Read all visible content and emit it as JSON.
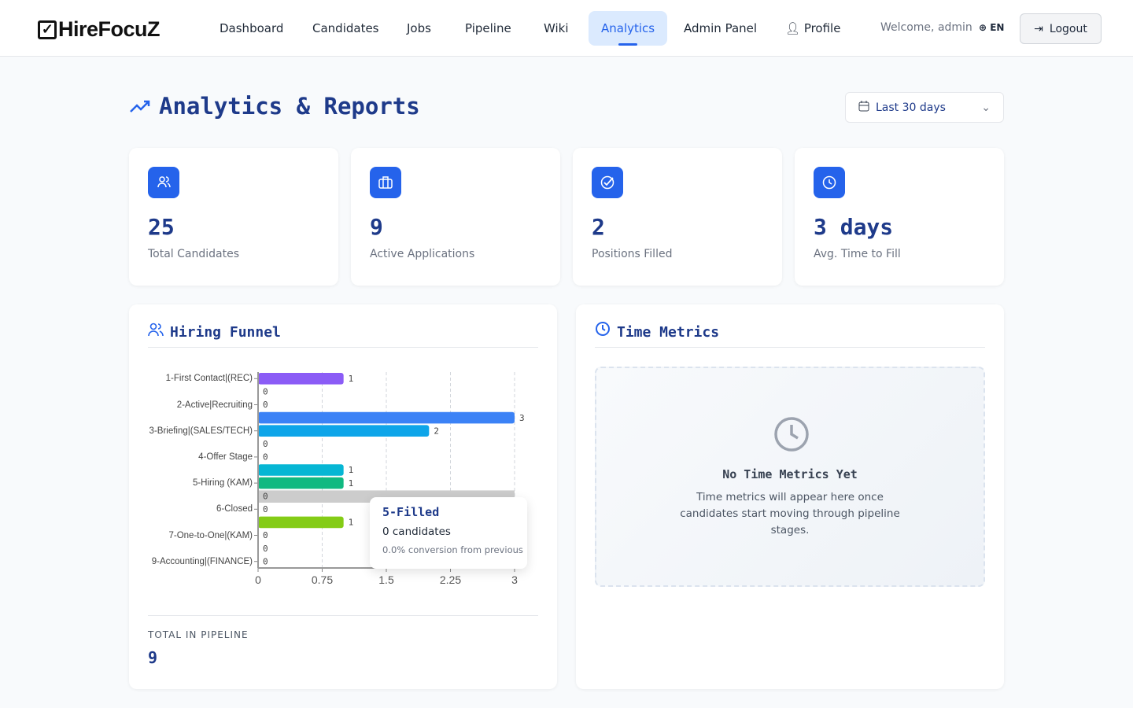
{
  "brand": "HireFocuZ",
  "nav": {
    "items": [
      "Dashboard",
      "Candidates",
      "Jobs",
      "Pipeline",
      "Wiki",
      "Analytics",
      "Admin Panel",
      "Profile"
    ],
    "active": "Analytics",
    "welcome": "Welcome, admin",
    "lang": "EN",
    "logout": "Logout"
  },
  "page": {
    "title": "Analytics & Reports",
    "range": "Last 30 days"
  },
  "stats": [
    {
      "value": "25",
      "label": "Total Candidates",
      "icon": "users-icon"
    },
    {
      "value": "9",
      "label": "Active Applications",
      "icon": "briefcase-icon"
    },
    {
      "value": "2",
      "label": "Positions Filled",
      "icon": "check-circle-icon"
    },
    {
      "value": "3 days",
      "label": "Avg. Time to Fill",
      "icon": "clock-icon"
    }
  ],
  "funnel": {
    "title": "Hiring Funnel",
    "total_label": "TOTAL IN PIPELINE",
    "total": "9",
    "tooltip": {
      "title": "5-Filled",
      "count": "0 candidates",
      "conversion": "0.0% conversion from previous"
    }
  },
  "time": {
    "title": "Time Metrics",
    "empty_title": "No Time Metrics Yet",
    "empty_text": "Time metrics will appear here once candidates start moving through pipeline stages."
  },
  "chart_data": {
    "type": "bar",
    "orientation": "horizontal",
    "categories": [
      "1-First Contact (REC)",
      "",
      "2-Active Recruiting",
      "",
      "3-Briefing (SALES/TECH)",
      "",
      "4-Offer Stage",
      "",
      "5-Hiring (KAM)",
      "5-Filled",
      "6-Closed",
      "",
      "7-One-to-One (KAM)",
      "",
      "9-Accounting (FINANCE)"
    ],
    "tick_labels": [
      "1-First Contact|(REC)",
      "2-Active|Recruiting",
      "3-Briefing|(SALES/TECH)",
      "4-Offer Stage",
      "5-Hiring (KAM)",
      "6-Closed",
      "7-One-to-One|(KAM)",
      "9-Accounting|(FINANCE)"
    ],
    "values": [
      1,
      0,
      0,
      3,
      2,
      0,
      0,
      1,
      1,
      0,
      0,
      1,
      0,
      0,
      0
    ],
    "colors": [
      "#8b5cf6",
      "#6366f1",
      "#6366f1",
      "#3b82f6",
      "#0ea5e9",
      "#06b6d4",
      "#06b6d4",
      "#06b6d4",
      "#10b981",
      "#10b981",
      "#22c55e",
      "#84cc16",
      "#84cc16",
      "#84cc16",
      "#84cc16"
    ],
    "highlight_index": 9,
    "xlim": [
      0,
      3
    ],
    "xticks": [
      "0",
      "0.75",
      "1.5",
      "2.25",
      "3"
    ],
    "grid": "vertical dashed"
  }
}
